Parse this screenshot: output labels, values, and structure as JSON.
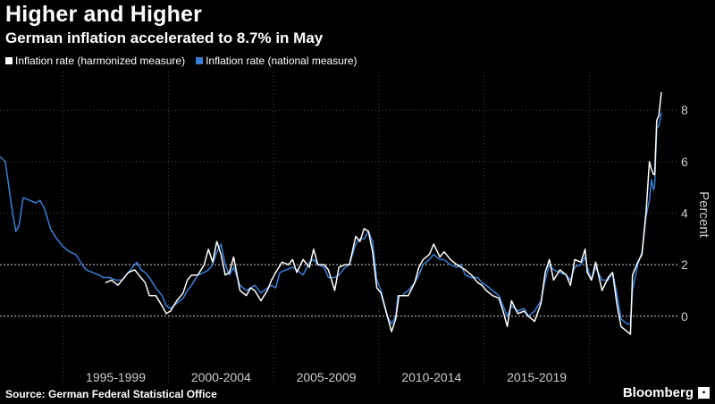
{
  "header": {
    "title": "Higher and Higher",
    "subtitle": "German inflation accelerated to 8.7% in May"
  },
  "legend": [
    {
      "label": "Inflation rate (harmonized measure)",
      "color": "#ffffff"
    },
    {
      "label": "Inflation rate (national measure)",
      "color": "#3a7fd5"
    }
  ],
  "footer": {
    "source": "Source: German Federal Statistical Office",
    "brand": "Bloomberg"
  },
  "colors": {
    "background": "#000000",
    "harmonized": "#ffffff",
    "national": "#3a7fd5",
    "grid": "#555555",
    "axis_text": "#cccccc"
  },
  "chart_data": {
    "type": "line",
    "title": "Higher and Higher",
    "subtitle": "German inflation accelerated to 8.7% in May",
    "ylabel": "Percent",
    "xlabel": "",
    "x_tick_labels": [
      "1995-1999",
      "2000-2004",
      "2005-2009",
      "2010-2014",
      "2015-2019"
    ],
    "y_ticks": [
      0,
      2,
      4,
      6,
      8
    ],
    "ylim": [
      -1.5,
      9.5
    ],
    "xlim": [
      1991.0,
      2022.42
    ],
    "y_axis_position": "right",
    "grid": "dotted horizontal and vertical",
    "legend_position": "top-left",
    "series": [
      {
        "name": "Inflation rate (national measure)",
        "color": "#3a7fd5",
        "points": [
          [
            1991.0,
            6.2
          ],
          [
            1991.25,
            6.0
          ],
          [
            1991.6,
            4.0
          ],
          [
            1991.75,
            3.3
          ],
          [
            1991.9,
            3.5
          ],
          [
            1992.1,
            4.6
          ],
          [
            1992.4,
            4.5
          ],
          [
            1992.7,
            4.4
          ],
          [
            1992.9,
            4.5
          ],
          [
            1993.1,
            4.2
          ],
          [
            1993.4,
            3.4
          ],
          [
            1993.7,
            3.0
          ],
          [
            1994.0,
            2.7
          ],
          [
            1994.3,
            2.5
          ],
          [
            1994.6,
            2.4
          ],
          [
            1994.9,
            2.0
          ],
          [
            1995.1,
            1.8
          ],
          [
            1995.4,
            1.7
          ],
          [
            1995.7,
            1.6
          ],
          [
            1995.9,
            1.5
          ],
          [
            1996.2,
            1.5
          ],
          [
            1996.5,
            1.4
          ],
          [
            1996.8,
            1.4
          ],
          [
            1997.0,
            1.6
          ],
          [
            1997.3,
            1.9
          ],
          [
            1997.5,
            2.1
          ],
          [
            1997.7,
            1.8
          ],
          [
            1997.9,
            1.7
          ],
          [
            1998.1,
            1.5
          ],
          [
            1998.4,
            1.1
          ],
          [
            1998.7,
            0.8
          ],
          [
            1998.9,
            0.4
          ],
          [
            1999.1,
            0.3
          ],
          [
            1999.4,
            0.5
          ],
          [
            1999.7,
            0.7
          ],
          [
            1999.9,
            1.0
          ],
          [
            2000.1,
            1.2
          ],
          [
            2000.4,
            1.6
          ],
          [
            2000.7,
            1.7
          ],
          [
            2000.9,
            1.8
          ],
          [
            2001.1,
            2.0
          ],
          [
            2001.3,
            2.5
          ],
          [
            2001.5,
            2.8
          ],
          [
            2001.7,
            2.0
          ],
          [
            2001.9,
            1.6
          ],
          [
            2002.1,
            1.9
          ],
          [
            2002.4,
            1.2
          ],
          [
            2002.7,
            1.0
          ],
          [
            2002.9,
            1.1
          ],
          [
            2003.1,
            1.2
          ],
          [
            2003.4,
            0.9
          ],
          [
            2003.7,
            1.1
          ],
          [
            2003.9,
            1.2
          ],
          [
            2004.1,
            1.1
          ],
          [
            2004.3,
            1.7
          ],
          [
            2004.6,
            1.8
          ],
          [
            2004.9,
            1.9
          ],
          [
            2005.1,
            1.8
          ],
          [
            2005.4,
            1.6
          ],
          [
            2005.7,
            2.1
          ],
          [
            2005.9,
            2.2
          ],
          [
            2006.1,
            2.0
          ],
          [
            2006.4,
            1.9
          ],
          [
            2006.6,
            1.5
          ],
          [
            2006.9,
            1.5
          ],
          [
            2007.1,
            1.6
          ],
          [
            2007.4,
            1.9
          ],
          [
            2007.6,
            2.0
          ],
          [
            2007.9,
            2.8
          ],
          [
            2008.1,
            3.0
          ],
          [
            2008.3,
            3.0
          ],
          [
            2008.5,
            3.3
          ],
          [
            2008.7,
            2.9
          ],
          [
            2008.9,
            1.4
          ],
          [
            2009.1,
            1.0
          ],
          [
            2009.4,
            0.0
          ],
          [
            2009.6,
            -0.3
          ],
          [
            2009.8,
            0.0
          ],
          [
            2009.9,
            0.8
          ],
          [
            2010.1,
            0.8
          ],
          [
            2010.4,
            1.0
          ],
          [
            2010.7,
            1.3
          ],
          [
            2010.9,
            1.6
          ],
          [
            2011.1,
            2.0
          ],
          [
            2011.4,
            2.2
          ],
          [
            2011.6,
            2.4
          ],
          [
            2011.9,
            2.2
          ],
          [
            2012.1,
            2.2
          ],
          [
            2012.4,
            2.0
          ],
          [
            2012.7,
            1.9
          ],
          [
            2012.9,
            2.0
          ],
          [
            2013.1,
            1.6
          ],
          [
            2013.4,
            1.5
          ],
          [
            2013.7,
            1.5
          ],
          [
            2013.9,
            1.3
          ],
          [
            2014.1,
            1.2
          ],
          [
            2014.4,
            1.0
          ],
          [
            2014.7,
            0.8
          ],
          [
            2014.9,
            0.4
          ],
          [
            2015.1,
            0.0
          ],
          [
            2015.3,
            0.4
          ],
          [
            2015.6,
            0.2
          ],
          [
            2015.9,
            0.3
          ],
          [
            2016.1,
            0.0
          ],
          [
            2016.4,
            0.2
          ],
          [
            2016.7,
            0.6
          ],
          [
            2016.9,
            1.4
          ],
          [
            2017.1,
            2.0
          ],
          [
            2017.3,
            1.8
          ],
          [
            2017.6,
            1.7
          ],
          [
            2017.9,
            1.6
          ],
          [
            2018.1,
            1.4
          ],
          [
            2018.3,
            1.9
          ],
          [
            2018.6,
            2.0
          ],
          [
            2018.8,
            2.3
          ],
          [
            2018.9,
            1.9
          ],
          [
            2019.1,
            1.4
          ],
          [
            2019.3,
            1.9
          ],
          [
            2019.6,
            1.4
          ],
          [
            2019.9,
            1.4
          ],
          [
            2020.1,
            1.7
          ],
          [
            2020.3,
            0.9
          ],
          [
            2020.5,
            -0.1
          ],
          [
            2020.8,
            -0.3
          ],
          [
            2020.95,
            -0.3
          ],
          [
            2021.05,
            1.0
          ],
          [
            2021.3,
            2.0
          ],
          [
            2021.5,
            2.5
          ],
          [
            2021.7,
            3.9
          ],
          [
            2021.85,
            4.5
          ],
          [
            2021.95,
            5.3
          ],
          [
            2022.05,
            4.9
          ],
          [
            2022.1,
            5.1
          ],
          [
            2022.2,
            7.3
          ],
          [
            2022.3,
            7.4
          ],
          [
            2022.42,
            7.9
          ]
        ]
      },
      {
        "name": "Inflation rate (harmonized measure)",
        "color": "#ffffff",
        "points": [
          [
            1996.0,
            1.3
          ],
          [
            1996.3,
            1.4
          ],
          [
            1996.6,
            1.2
          ],
          [
            1996.9,
            1.5
          ],
          [
            1997.1,
            1.7
          ],
          [
            1997.4,
            1.8
          ],
          [
            1997.6,
            1.6
          ],
          [
            1997.9,
            1.3
          ],
          [
            1998.1,
            0.8
          ],
          [
            1998.4,
            0.8
          ],
          [
            1998.7,
            0.4
          ],
          [
            1998.9,
            0.1
          ],
          [
            1999.1,
            0.2
          ],
          [
            1999.4,
            0.6
          ],
          [
            1999.7,
            0.9
          ],
          [
            1999.9,
            1.4
          ],
          [
            2000.1,
            1.6
          ],
          [
            2000.4,
            1.6
          ],
          [
            2000.7,
            2.0
          ],
          [
            2000.9,
            2.6
          ],
          [
            2001.1,
            2.1
          ],
          [
            2001.3,
            2.9
          ],
          [
            2001.5,
            2.4
          ],
          [
            2001.7,
            1.6
          ],
          [
            2001.9,
            1.7
          ],
          [
            2002.1,
            2.3
          ],
          [
            2002.4,
            1.0
          ],
          [
            2002.7,
            0.8
          ],
          [
            2002.9,
            1.1
          ],
          [
            2003.1,
            1.0
          ],
          [
            2003.4,
            0.6
          ],
          [
            2003.7,
            1.0
          ],
          [
            2003.9,
            1.4
          ],
          [
            2004.1,
            1.7
          ],
          [
            2004.4,
            2.1
          ],
          [
            2004.7,
            2.0
          ],
          [
            2004.9,
            2.2
          ],
          [
            2005.1,
            1.7
          ],
          [
            2005.4,
            2.2
          ],
          [
            2005.7,
            1.9
          ],
          [
            2005.9,
            2.6
          ],
          [
            2006.1,
            2.0
          ],
          [
            2006.4,
            2.0
          ],
          [
            2006.6,
            1.8
          ],
          [
            2006.9,
            1.0
          ],
          [
            2007.1,
            1.9
          ],
          [
            2007.4,
            2.0
          ],
          [
            2007.6,
            2.0
          ],
          [
            2007.9,
            3.1
          ],
          [
            2008.1,
            2.9
          ],
          [
            2008.3,
            3.4
          ],
          [
            2008.5,
            3.3
          ],
          [
            2008.7,
            2.5
          ],
          [
            2008.9,
            1.1
          ],
          [
            2009.1,
            0.9
          ],
          [
            2009.4,
            0.0
          ],
          [
            2009.6,
            -0.6
          ],
          [
            2009.8,
            -0.1
          ],
          [
            2009.95,
            0.8
          ],
          [
            2010.1,
            0.8
          ],
          [
            2010.4,
            0.8
          ],
          [
            2010.7,
            1.3
          ],
          [
            2010.9,
            1.9
          ],
          [
            2011.1,
            2.2
          ],
          [
            2011.4,
            2.4
          ],
          [
            2011.6,
            2.8
          ],
          [
            2011.9,
            2.3
          ],
          [
            2012.1,
            2.5
          ],
          [
            2012.4,
            2.2
          ],
          [
            2012.7,
            2.0
          ],
          [
            2012.9,
            1.9
          ],
          [
            2013.1,
            1.8
          ],
          [
            2013.4,
            1.6
          ],
          [
            2013.7,
            1.3
          ],
          [
            2013.9,
            1.2
          ],
          [
            2014.1,
            1.0
          ],
          [
            2014.4,
            0.8
          ],
          [
            2014.7,
            0.7
          ],
          [
            2014.9,
            0.2
          ],
          [
            2015.1,
            -0.4
          ],
          [
            2015.3,
            0.6
          ],
          [
            2015.6,
            0.1
          ],
          [
            2015.9,
            0.2
          ],
          [
            2016.1,
            0.0
          ],
          [
            2016.4,
            -0.2
          ],
          [
            2016.7,
            0.5
          ],
          [
            2016.9,
            1.7
          ],
          [
            2017.1,
            2.2
          ],
          [
            2017.3,
            1.4
          ],
          [
            2017.6,
            1.8
          ],
          [
            2017.9,
            1.6
          ],
          [
            2018.1,
            1.2
          ],
          [
            2018.3,
            2.2
          ],
          [
            2018.6,
            2.1
          ],
          [
            2018.8,
            2.6
          ],
          [
            2018.9,
            1.7
          ],
          [
            2019.1,
            1.4
          ],
          [
            2019.3,
            2.1
          ],
          [
            2019.6,
            1.0
          ],
          [
            2019.9,
            1.5
          ],
          [
            2020.1,
            1.7
          ],
          [
            2020.3,
            0.5
          ],
          [
            2020.5,
            -0.4
          ],
          [
            2020.8,
            -0.6
          ],
          [
            2020.95,
            -0.7
          ],
          [
            2021.05,
            1.6
          ],
          [
            2021.3,
            2.1
          ],
          [
            2021.5,
            2.4
          ],
          [
            2021.7,
            4.1
          ],
          [
            2021.85,
            6.0
          ],
          [
            2021.95,
            5.7
          ],
          [
            2022.05,
            5.5
          ],
          [
            2022.1,
            5.5
          ],
          [
            2022.2,
            7.6
          ],
          [
            2022.3,
            7.8
          ],
          [
            2022.42,
            8.7
          ]
        ]
      }
    ]
  }
}
